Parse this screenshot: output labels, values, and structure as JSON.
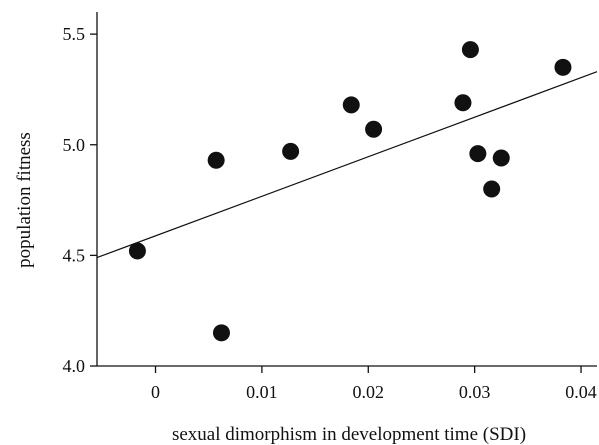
{
  "chart_data": {
    "type": "scatter",
    "title": "",
    "xlabel": "sexual dimorphism in development time (SDI)",
    "ylabel": "population fitness",
    "xlim": [
      -0.0055,
      0.0415
    ],
    "ylim": [
      4.0,
      5.6
    ],
    "xticks": [
      0,
      0.01,
      0.02,
      0.03,
      0.04
    ],
    "xtick_labels": [
      "0",
      "0.01",
      "0.02",
      "0.03",
      "0.04"
    ],
    "yticks": [
      4.0,
      4.5,
      5.0,
      5.5
    ],
    "ytick_labels": [
      "4.0",
      "4.5",
      "5.0",
      "5.5"
    ],
    "grid": false,
    "legend": "none",
    "series": [
      {
        "points": [
          {
            "x": -0.0017,
            "y": 4.52
          },
          {
            "x": 0.0057,
            "y": 4.93
          },
          {
            "x": 0.0062,
            "y": 4.15
          },
          {
            "x": 0.0127,
            "y": 4.97
          },
          {
            "x": 0.0184,
            "y": 5.18
          },
          {
            "x": 0.0205,
            "y": 5.07
          },
          {
            "x": 0.0289,
            "y": 5.19
          },
          {
            "x": 0.0296,
            "y": 5.43
          },
          {
            "x": 0.0303,
            "y": 4.96
          },
          {
            "x": 0.0316,
            "y": 4.8
          },
          {
            "x": 0.0325,
            "y": 4.94
          },
          {
            "x": 0.0383,
            "y": 5.35
          }
        ]
      }
    ],
    "trendline": {
      "x": [
        -0.0055,
        0.0415
      ],
      "y": [
        4.49,
        5.33
      ]
    }
  }
}
